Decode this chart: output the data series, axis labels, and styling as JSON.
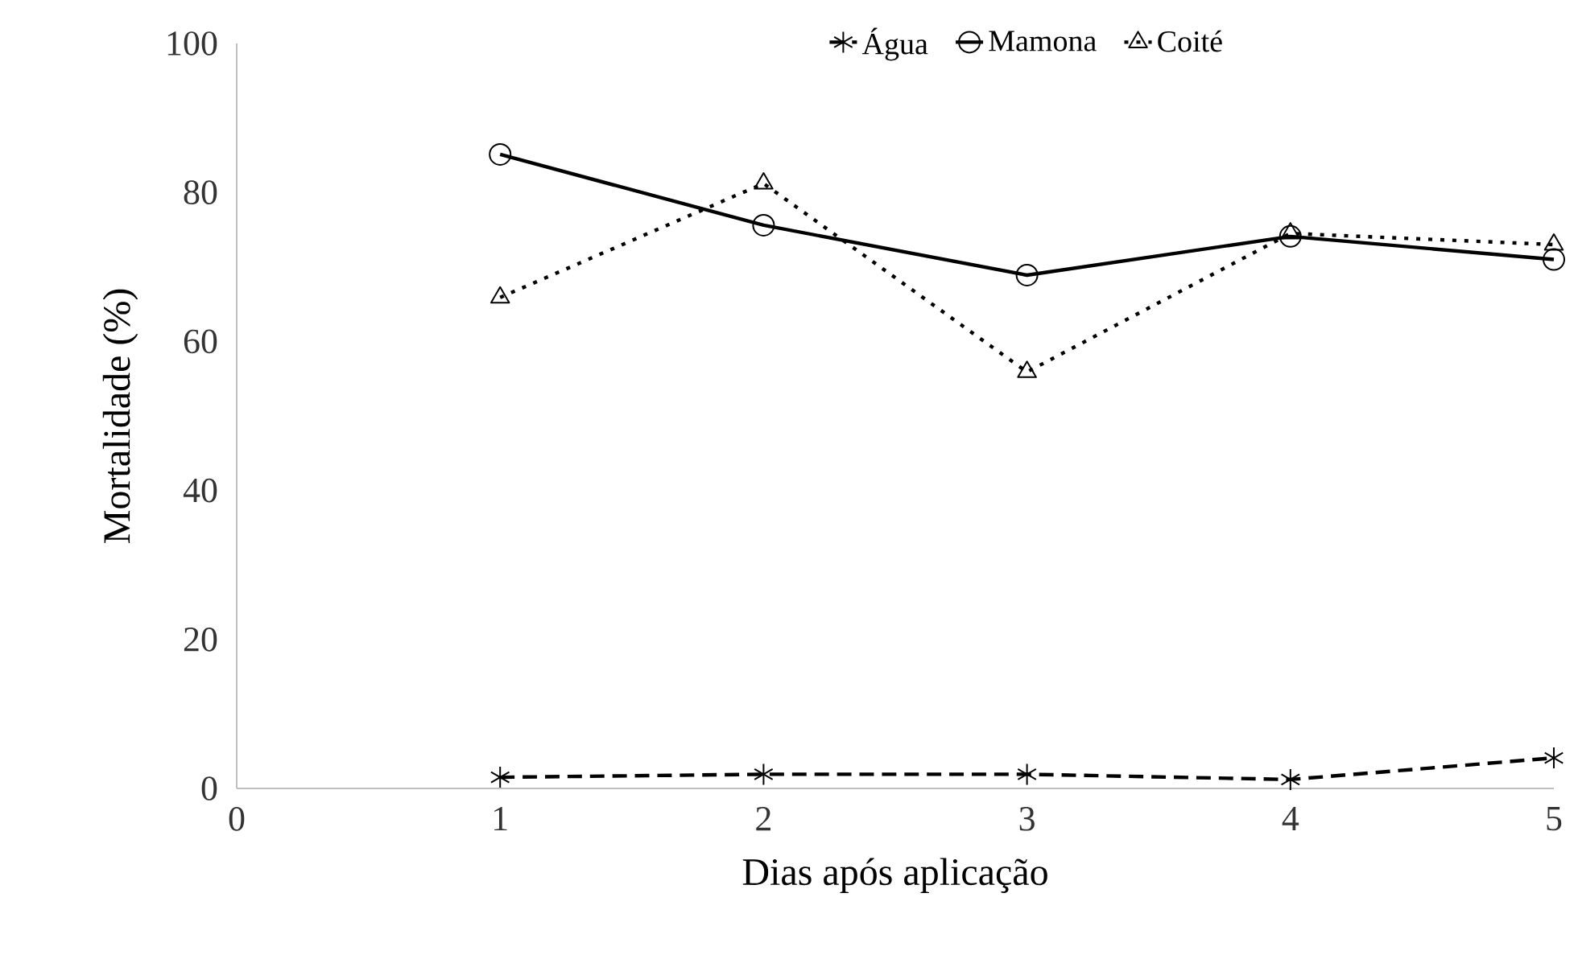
{
  "chart_data": {
    "type": "line",
    "xlabel": "Dias após aplicação",
    "ylabel": "Mortalidade (%)",
    "x": [
      1,
      2,
      3,
      4,
      5
    ],
    "series": [
      {
        "name": "Água",
        "color": "#000000",
        "values": [
          1.5,
          1.9,
          1.9,
          1.2,
          4.1
        ],
        "marker": "cross",
        "line_style": "dashed"
      },
      {
        "name": "Mamona",
        "color": "#000000",
        "values": [
          85.1,
          75.6,
          68.9,
          74.1,
          71.0
        ],
        "marker": "circle",
        "line_style": "solid"
      },
      {
        "name": "Coité",
        "color": "#000000",
        "values": [
          65.9,
          81.2,
          55.9,
          74.5,
          73.0
        ],
        "marker": "triangle",
        "line_style": "dotted"
      }
    ],
    "xlim": [
      0,
      5
    ],
    "xticks": [
      0,
      1,
      2,
      3,
      4,
      5
    ],
    "ylim": [
      0,
      100
    ],
    "yticks": [
      0,
      20,
      40,
      60,
      80,
      100
    ],
    "grid": false,
    "legend": "top"
  }
}
